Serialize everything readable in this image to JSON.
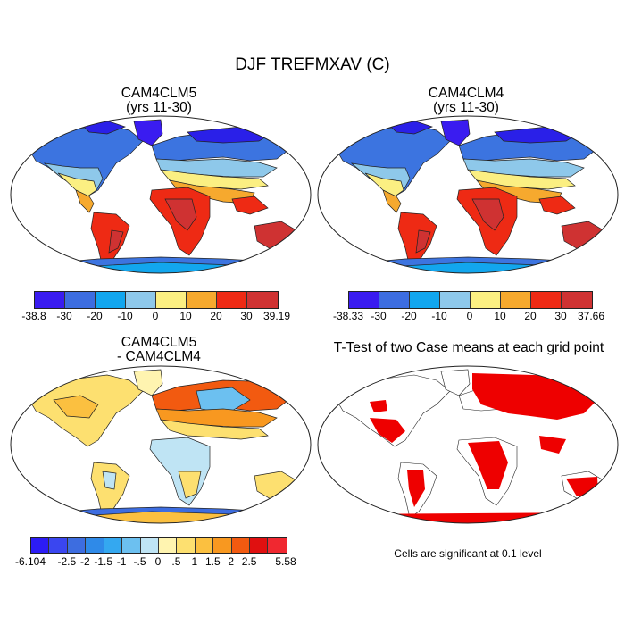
{
  "title": "DJF TREFMXAV (C)",
  "panels": {
    "top_left": {
      "line1": "CAM4CLM5",
      "line2": "(yrs 11-30)"
    },
    "top_right": {
      "line1": "CAM4CLM4",
      "line2": "(yrs 11-30)"
    },
    "bottom_left": {
      "line1": "CAM4CLM5",
      "line2": "- CAM4CLM4"
    },
    "bottom_right": {
      "line1": "T-Test of two Case means at each grid point"
    }
  },
  "colorbar1": {
    "colors": [
      "#3a1cf0",
      "#3d6de0",
      "#12a6ee",
      "#8ec8ea",
      "#fbef82",
      "#f6a92e",
      "#ee2a14",
      "#cf3232"
    ],
    "labels": [
      "-38.8",
      "-30",
      "-20",
      "-10",
      "0",
      "10",
      "20",
      "30",
      "39.19"
    ]
  },
  "colorbar2": {
    "colors": [
      "#3a1cf0",
      "#3d6de0",
      "#12a6ee",
      "#8ec8ea",
      "#fbef82",
      "#f6a92e",
      "#ee2a14",
      "#cf3232"
    ],
    "labels": [
      "-38.33",
      "-30",
      "-20",
      "-10",
      "0",
      "10",
      "20",
      "30",
      "37.66"
    ]
  },
  "colorbar3": {
    "colors": [
      "#2c1cf5",
      "#3a46f0",
      "#3d6de0",
      "#2f8ae8",
      "#34a8f0",
      "#6cc0f0",
      "#bfe4f4",
      "#fff4b0",
      "#fde070",
      "#fbc040",
      "#f89820",
      "#f25a10",
      "#e01010",
      "#f02830"
    ],
    "labels": [
      "-6.104",
      "-2.5",
      "-2",
      "-1.5",
      "-1",
      "-.5",
      "0",
      ".5",
      "1",
      "1.5",
      "2",
      "2.5",
      "5.58"
    ]
  },
  "footnote": "Cells are significant at 0.1 level"
}
